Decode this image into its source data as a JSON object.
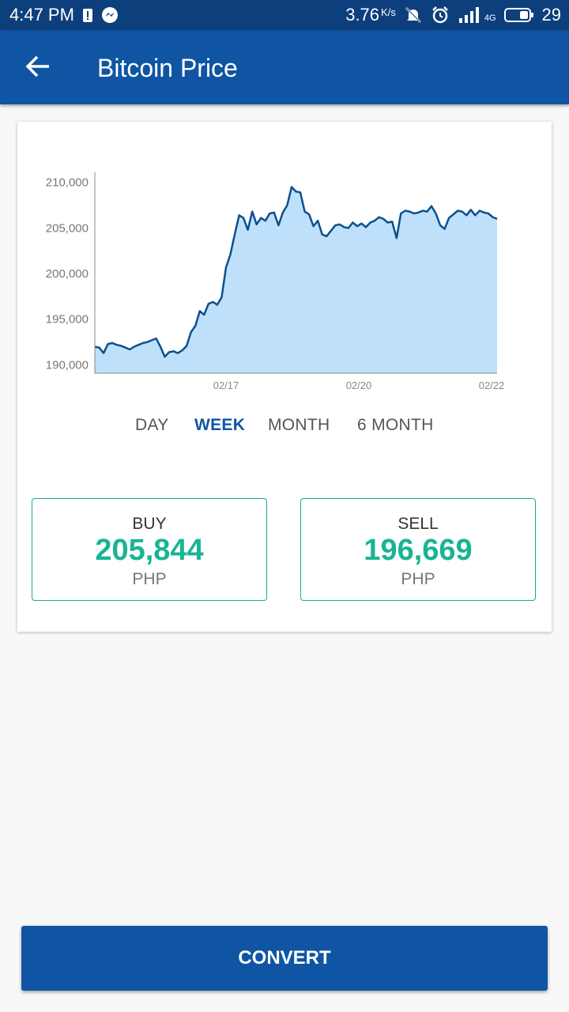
{
  "status_bar": {
    "time": "4:47 PM",
    "speed": "3.76",
    "speed_unit": "K/s",
    "network": "4G",
    "battery": "29"
  },
  "app_bar": {
    "title": "Bitcoin Price"
  },
  "chart_data": {
    "type": "area",
    "title": "",
    "xlabel": "",
    "ylabel": "",
    "ylim": [
      189000,
      211000
    ],
    "yticks": [
      "210,000",
      "205,000",
      "200,000",
      "195,000",
      "190,000"
    ],
    "xtick_labels": [
      "02/17",
      "02/20",
      "02/22"
    ],
    "series": [
      {
        "values": [
          191900,
          191800,
          191200,
          192200,
          192300,
          192100,
          192000,
          191800,
          191600,
          191900,
          192100,
          192300,
          192400,
          192600,
          192800,
          191900,
          190800,
          191300,
          191400,
          191200,
          191500,
          192000,
          193500,
          194200,
          195800,
          195400,
          196600,
          196800,
          196500,
          197300,
          200600,
          202000,
          204200,
          206300,
          206000,
          204700,
          206700,
          205300,
          206000,
          205700,
          206500,
          206600,
          205200,
          206600,
          207400,
          209400,
          208900,
          208800,
          206700,
          206400,
          205100,
          205700,
          204200,
          204000,
          204600,
          205200,
          205300,
          205000,
          204900,
          205500,
          205100,
          205400,
          205000,
          205500,
          205700,
          206100,
          205900,
          205500,
          205600,
          203800,
          206500,
          206800,
          206700,
          206500,
          206600,
          206800,
          206700,
          207300,
          206500,
          205200,
          204800,
          206000,
          206400,
          206800,
          206700,
          206300,
          206900,
          206300,
          206800,
          206600,
          206500,
          206100,
          205900
        ]
      }
    ],
    "colors": {
      "line": "#0d4f8f",
      "fill": "#bfe0fb"
    }
  },
  "range_tabs": [
    {
      "label": "DAY"
    },
    {
      "label": "WEEK"
    },
    {
      "label": "MONTH"
    },
    {
      "label": "6 MONTH"
    }
  ],
  "buy": {
    "label": "BUY",
    "value": "205,844",
    "currency": "PHP"
  },
  "sell": {
    "label": "SELL",
    "value": "196,669",
    "currency": "PHP"
  },
  "convert_label": "CONVERT",
  "colors": {
    "primary": "#0f55a3",
    "accent": "#19b495"
  }
}
